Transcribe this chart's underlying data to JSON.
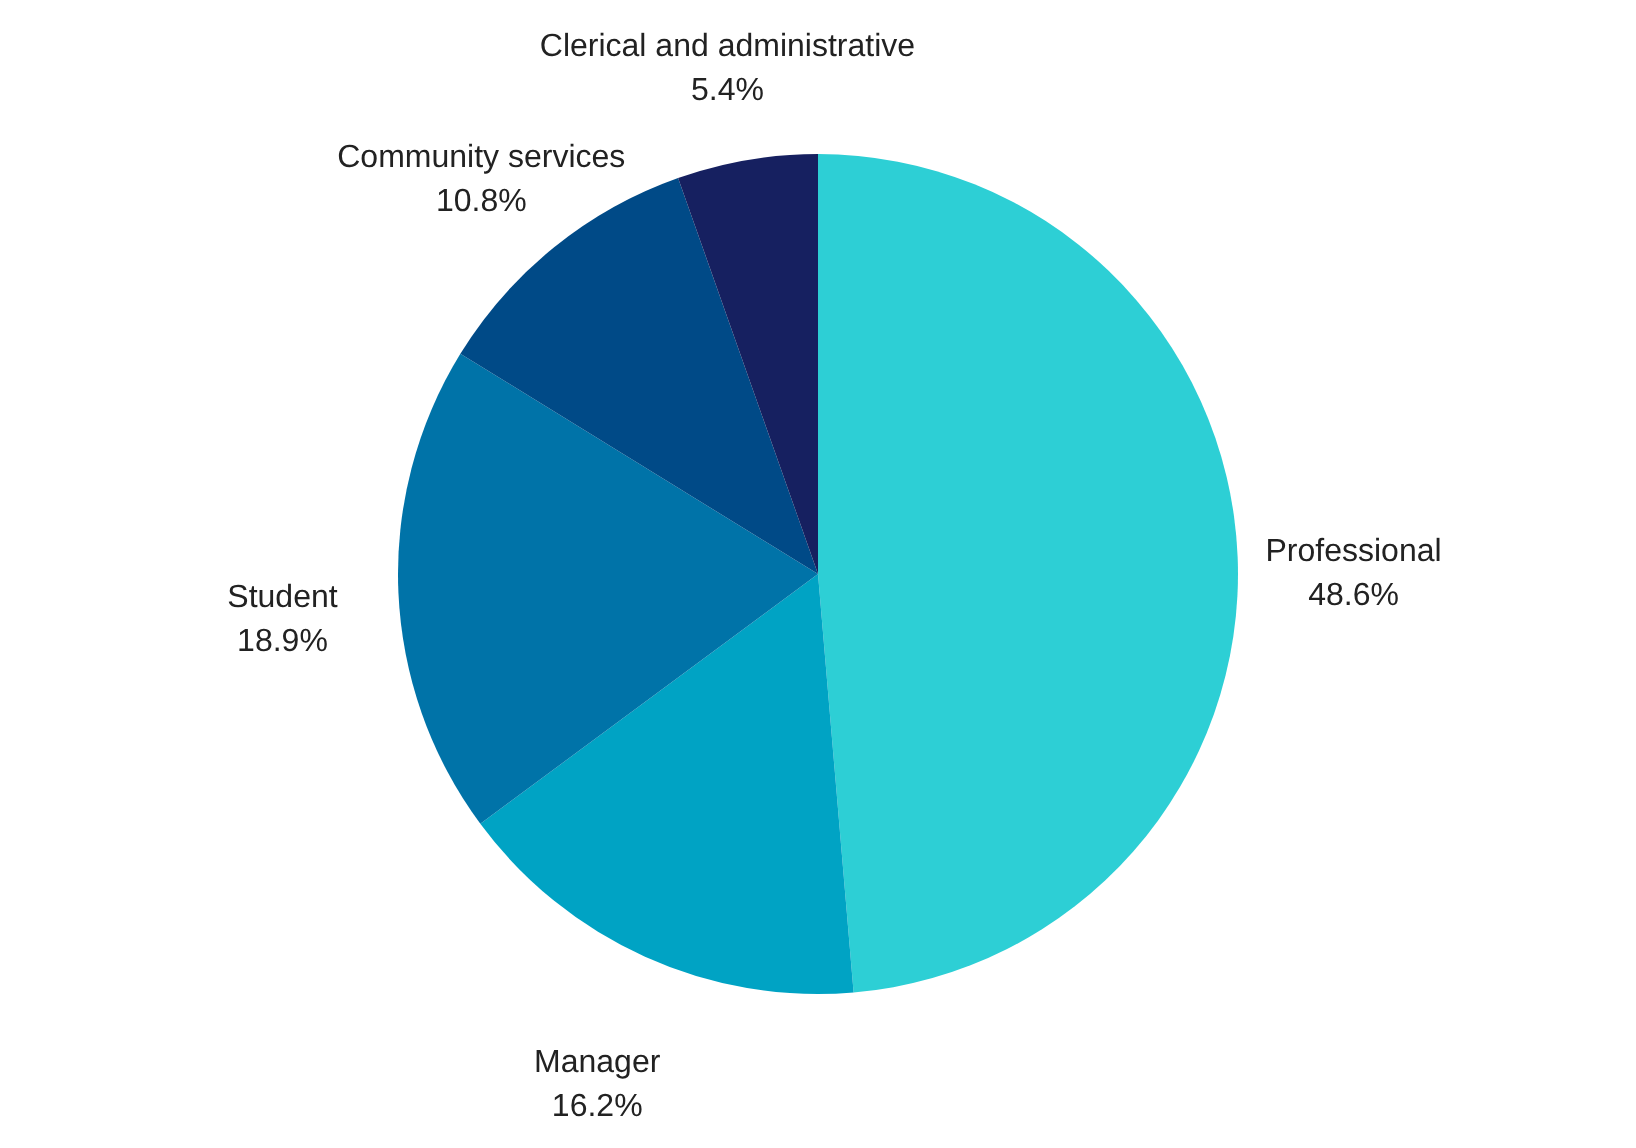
{
  "chart_data": {
    "type": "pie",
    "categories": [
      "Professional",
      "Manager",
      "Student",
      "Community services",
      "Clerical and administrative"
    ],
    "values": [
      48.6,
      16.2,
      18.9,
      10.8,
      5.4
    ],
    "value_labels": [
      "48.6%",
      "16.2%",
      "18.9%",
      "10.8%",
      "5.4%"
    ],
    "colors": [
      "#2dcfd5",
      "#00a3c4",
      "#0073a8",
      "#004a87",
      "#162060"
    ]
  }
}
